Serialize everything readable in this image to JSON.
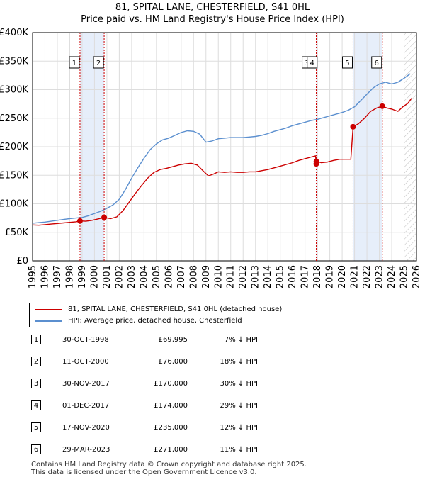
{
  "chart_data": {
    "type": "line",
    "title": "81, SPITAL LANE, CHESTERFIELD, S41 0HL",
    "subtitle": "Price paid vs. HM Land Registry's House Price Index (HPI)",
    "xlim": [
      1995,
      2026
    ],
    "ylim": [
      0,
      400000
    ],
    "grid": true,
    "x_ticks": [
      "1995",
      "1996",
      "1997",
      "1998",
      "1999",
      "2000",
      "2001",
      "2002",
      "2003",
      "2004",
      "2005",
      "2006",
      "2007",
      "2008",
      "2009",
      "2010",
      "2011",
      "2012",
      "2013",
      "2014",
      "2015",
      "2016",
      "2017",
      "2018",
      "2019",
      "2020",
      "2021",
      "2022",
      "2023",
      "2024",
      "2025",
      "2026"
    ],
    "y_ticks": [
      {
        "value": 0,
        "label": "£0"
      },
      {
        "value": 50000,
        "label": "£50K"
      },
      {
        "value": 100000,
        "label": "£100K"
      },
      {
        "value": 150000,
        "label": "£150K"
      },
      {
        "value": 200000,
        "label": "£200K"
      },
      {
        "value": 250000,
        "label": "£250K"
      },
      {
        "value": 300000,
        "label": "£300K"
      },
      {
        "value": 350000,
        "label": "£350K"
      },
      {
        "value": 400000,
        "label": "£400K"
      }
    ],
    "series": [
      {
        "name": "81, SPITAL LANE, CHESTERFIELD, S41 0HL (detached house)",
        "color": "#cc0000",
        "x": [
          1995.0,
          1995.5,
          1996.0,
          1996.5,
          1997.0,
          1997.5,
          1998.0,
          1998.5,
          1998.83,
          1999.3,
          1999.8,
          2000.3,
          2000.78,
          2001.3,
          2001.8,
          2002.3,
          2002.8,
          2003.3,
          2003.8,
          2004.3,
          2004.8,
          2005.3,
          2005.8,
          2006.3,
          2006.8,
          2007.3,
          2007.8,
          2008.3,
          2008.8,
          2009.2,
          2009.6,
          2010.0,
          2010.5,
          2011.0,
          2011.5,
          2012.0,
          2012.5,
          2013.0,
          2013.5,
          2014.0,
          2014.5,
          2015.0,
          2015.5,
          2016.0,
          2016.5,
          2017.0,
          2017.5,
          2017.85,
          2017.91,
          2017.95,
          2018.3,
          2018.8,
          2019.3,
          2019.8,
          2020.3,
          2020.7,
          2020.88,
          2021.3,
          2021.8,
          2022.3,
          2022.8,
          2023.24,
          2023.6,
          2024.0,
          2024.5,
          2024.9,
          2025.3,
          2025.6
        ],
        "values": [
          63000,
          62500,
          63500,
          64500,
          65500,
          66500,
          67500,
          68500,
          69995,
          69500,
          71000,
          73500,
          76000,
          74000,
          77000,
          88000,
          103000,
          118000,
          132000,
          145000,
          155000,
          160000,
          162000,
          165000,
          168000,
          170000,
          171000,
          168000,
          157000,
          149000,
          152000,
          156000,
          155000,
          156000,
          155000,
          155000,
          156000,
          156000,
          158000,
          160000,
          163000,
          166000,
          169000,
          172000,
          176000,
          179000,
          182000,
          184000,
          170000,
          174000,
          172000,
          173000,
          176000,
          178000,
          178000,
          178000,
          235000,
          240000,
          250000,
          262000,
          268000,
          271000,
          268000,
          266000,
          262000,
          270000,
          276000,
          285000
        ]
      },
      {
        "name": "HPI: Average price, detached house, Chesterfield",
        "color": "#5b8fcf",
        "x": [
          1995.0,
          1995.5,
          1996.0,
          1996.5,
          1997.0,
          1997.5,
          1998.0,
          1998.5,
          1999.0,
          1999.5,
          2000.0,
          2000.5,
          2001.0,
          2001.5,
          2002.0,
          2002.5,
          2003.0,
          2003.5,
          2004.0,
          2004.5,
          2005.0,
          2005.5,
          2006.0,
          2006.5,
          2007.0,
          2007.5,
          2008.0,
          2008.5,
          2009.0,
          2009.5,
          2010.0,
          2010.5,
          2011.0,
          2011.5,
          2012.0,
          2012.5,
          2013.0,
          2013.5,
          2014.0,
          2014.5,
          2015.0,
          2015.5,
          2016.0,
          2016.5,
          2017.0,
          2017.5,
          2018.0,
          2018.5,
          2019.0,
          2019.5,
          2020.0,
          2020.5,
          2021.0,
          2021.5,
          2022.0,
          2022.5,
          2023.0,
          2023.5,
          2024.0,
          2024.5,
          2025.0,
          2025.5
        ],
        "values": [
          66000,
          67000,
          68000,
          69500,
          71000,
          72500,
          74000,
          75000,
          76000,
          79000,
          83000,
          87000,
          92000,
          98000,
          108000,
          125000,
          145000,
          163000,
          180000,
          195000,
          205000,
          212000,
          215000,
          220000,
          225000,
          228000,
          227000,
          222000,
          208000,
          210000,
          214000,
          215000,
          216000,
          216000,
          216000,
          217000,
          218000,
          220000,
          223000,
          227000,
          230000,
          233000,
          237000,
          240000,
          243000,
          246000,
          248000,
          251000,
          254000,
          257000,
          260000,
          264000,
          270000,
          281000,
          292000,
          303000,
          310000,
          313000,
          310000,
          313000,
          320000,
          328000
        ]
      }
    ],
    "sales": [
      {
        "n": "1",
        "x": 1998.83,
        "value": 69995
      },
      {
        "n": "2",
        "x": 2000.78,
        "value": 76000
      },
      {
        "n": "3",
        "x": 2017.91,
        "value": 170000
      },
      {
        "n": "4",
        "x": 2017.92,
        "value": 174000
      },
      {
        "n": "5",
        "x": 2020.88,
        "value": 235000
      },
      {
        "n": "6",
        "x": 2023.24,
        "value": 271000
      }
    ],
    "shaded_bands": [
      [
        1998.83,
        2000.78
      ],
      [
        2017.91,
        2017.92
      ],
      [
        2020.88,
        2023.24
      ]
    ],
    "hatched_from": 2025.0
  },
  "legend": {
    "property_label": "81, SPITAL LANE, CHESTERFIELD, S41 0HL (detached house)",
    "hpi_label": "HPI: Average price, detached house, Chesterfield",
    "property_color": "#cc0000",
    "hpi_color": "#5b8fcf"
  },
  "table": {
    "rows": [
      {
        "num": "1",
        "date": "30-OCT-1998",
        "price": "£69,995",
        "hpi": "7% ↓ HPI"
      },
      {
        "num": "2",
        "date": "11-OCT-2000",
        "price": "£76,000",
        "hpi": "18% ↓ HPI"
      },
      {
        "num": "3",
        "date": "30-NOV-2017",
        "price": "£170,000",
        "hpi": "30% ↓ HPI"
      },
      {
        "num": "4",
        "date": "01-DEC-2017",
        "price": "£174,000",
        "hpi": "29% ↓ HPI"
      },
      {
        "num": "5",
        "date": "17-NOV-2020",
        "price": "£235,000",
        "hpi": "12% ↓ HPI"
      },
      {
        "num": "6",
        "date": "29-MAR-2023",
        "price": "£271,000",
        "hpi": "11% ↓ HPI"
      }
    ]
  },
  "footer": {
    "line1": "Contains HM Land Registry data © Crown copyright and database right 2025.",
    "line2": "This data is licensed under the Open Government Licence v3.0."
  }
}
